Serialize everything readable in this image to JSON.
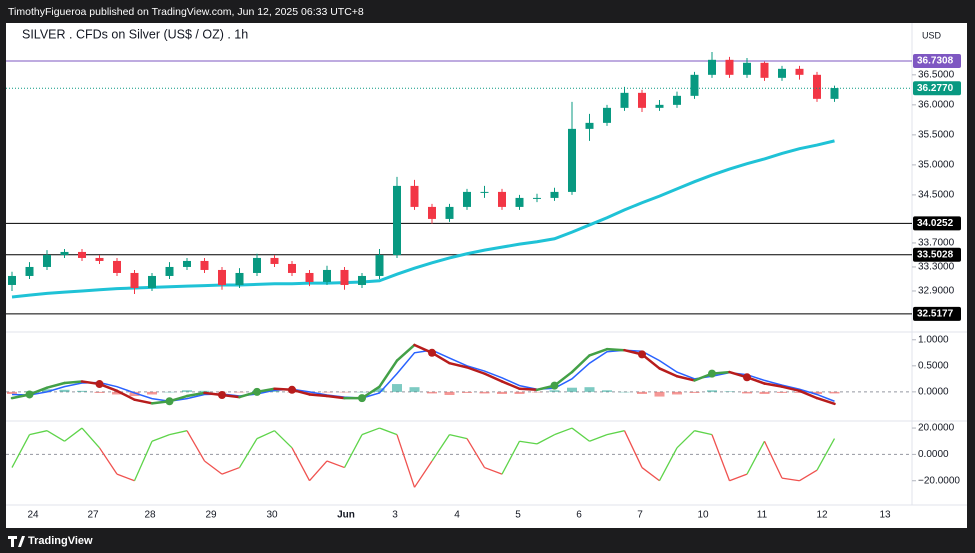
{
  "header": {
    "publisher": "TimothyFigueroa published on TradingView.com, Jun 12, 2025 06:33 UTC+8"
  },
  "footer": {
    "brand": "TradingView"
  },
  "chart_data": {
    "type": "candlestick",
    "title": "SILVER . CFDs on Silver (US$ / OZ) . 1h",
    "currency": "USD",
    "x_labels": [
      "24",
      "27",
      "28",
      "29",
      "30",
      "Jun",
      "3",
      "4",
      "5",
      "6",
      "7",
      "10",
      "11",
      "12",
      "13"
    ],
    "open": [
      33.0,
      33.15,
      33.3,
      33.5,
      33.55,
      33.45,
      33.4,
      33.2,
      32.95,
      33.15,
      33.3,
      33.4,
      33.25,
      33.0,
      33.2,
      33.45,
      33.35,
      33.2,
      33.05,
      33.25,
      33.0,
      33.15,
      33.5,
      34.65,
      34.3,
      34.1,
      34.3,
      34.55,
      34.55,
      34.3,
      34.45,
      34.45,
      34.55,
      35.6,
      35.7,
      35.95,
      36.2,
      35.95,
      36.0,
      36.15,
      36.5,
      36.75,
      36.5,
      36.7,
      36.45,
      36.6,
      36.5,
      36.1
    ],
    "high": [
      33.22,
      33.38,
      33.58,
      33.6,
      33.6,
      33.5,
      33.45,
      33.25,
      33.2,
      33.38,
      33.45,
      33.45,
      33.3,
      33.28,
      33.52,
      33.5,
      33.4,
      33.25,
      33.32,
      33.3,
      33.2,
      33.6,
      34.8,
      34.75,
      34.35,
      34.35,
      34.6,
      34.65,
      34.6,
      34.5,
      34.52,
      34.62,
      36.05,
      35.85,
      36.0,
      36.3,
      36.25,
      36.08,
      36.22,
      36.55,
      36.88,
      36.8,
      36.78,
      36.72,
      36.65,
      36.65,
      36.55,
      36.32
    ],
    "low": [
      32.9,
      33.1,
      33.25,
      33.45,
      33.4,
      33.35,
      33.15,
      32.85,
      32.9,
      33.1,
      33.25,
      33.2,
      32.92,
      32.95,
      33.15,
      33.3,
      33.15,
      32.98,
      33.0,
      32.92,
      32.95,
      33.1,
      33.45,
      34.25,
      34.02,
      34.05,
      34.25,
      34.45,
      34.25,
      34.25,
      34.38,
      34.4,
      34.5,
      35.4,
      35.65,
      35.9,
      35.88,
      35.9,
      35.95,
      36.1,
      36.45,
      36.45,
      36.45,
      36.4,
      36.4,
      36.42,
      36.05,
      36.05
    ],
    "close": [
      33.15,
      33.3,
      33.5,
      33.55,
      33.45,
      33.4,
      33.2,
      32.95,
      33.15,
      33.3,
      33.4,
      33.25,
      33.0,
      33.2,
      33.45,
      33.35,
      33.2,
      33.05,
      33.25,
      33.0,
      33.15,
      33.5,
      34.65,
      34.3,
      34.1,
      34.3,
      34.55,
      34.55,
      34.3,
      34.45,
      34.45,
      34.55,
      35.6,
      35.7,
      35.95,
      36.2,
      35.95,
      36.0,
      36.15,
      36.5,
      36.75,
      36.5,
      36.7,
      36.45,
      36.6,
      36.5,
      36.1,
      36.28
    ],
    "up_color": "#089981",
    "down_color": "#f23645",
    "moving_average": {
      "color": "#1fc2d6",
      "values": [
        32.8,
        32.83,
        32.86,
        32.88,
        32.9,
        32.92,
        32.94,
        32.95,
        32.96,
        32.97,
        32.98,
        32.99,
        33.0,
        33.0,
        33.01,
        33.02,
        33.02,
        33.03,
        33.03,
        33.04,
        33.05,
        33.07,
        33.18,
        33.28,
        33.37,
        33.45,
        33.52,
        33.58,
        33.63,
        33.68,
        33.72,
        33.77,
        33.88,
        34.0,
        34.12,
        34.25,
        34.37,
        34.48,
        34.6,
        34.72,
        34.83,
        34.93,
        35.02,
        35.1,
        35.19,
        35.27,
        35.33,
        35.4
      ]
    },
    "ylim": [
      32.25,
      37.28
    ],
    "yticks": [
      {
        "value": 36.5,
        "label": "36.5000"
      },
      {
        "value": 36.0,
        "label": "36.0000"
      },
      {
        "value": 35.5,
        "label": "35.5000"
      },
      {
        "value": 35.0,
        "label": "35.0000"
      },
      {
        "value": 34.5,
        "label": "34.5000"
      },
      {
        "value": 33.7,
        "label": "33.7000"
      },
      {
        "value": 33.3,
        "label": "33.3000"
      },
      {
        "value": 32.9,
        "label": "32.9000"
      }
    ],
    "levels": [
      {
        "value": 36.7308,
        "color": "#7e57c2"
      },
      {
        "value": 34.0252,
        "color": "#000000"
      },
      {
        "value": 33.5028,
        "color": "#000000"
      },
      {
        "value": 32.5177,
        "color": "#000000"
      }
    ],
    "last_price": {
      "value": 36.277,
      "label": "36.2770",
      "color": "#089981"
    },
    "panes": [
      {
        "type": "macd",
        "ylim": [
          -0.54,
          1.13
        ],
        "yticks": [
          {
            "value": 1.0,
            "label": "1.0000"
          },
          {
            "value": 0.5,
            "label": "0.5000"
          },
          {
            "value": 0.0,
            "label": "0.0000"
          }
        ],
        "zero_line": true,
        "fast": {
          "rising_color": "#43a047",
          "falling_color": "#b71c1c",
          "values": [
            -0.12,
            -0.05,
            0.08,
            0.17,
            0.2,
            0.15,
            0.02,
            -0.15,
            -0.22,
            -0.18,
            -0.08,
            -0.02,
            -0.06,
            -0.1,
            0.0,
            0.06,
            0.04,
            -0.05,
            -0.08,
            -0.12,
            -0.12,
            0.1,
            0.6,
            0.9,
            0.75,
            0.55,
            0.47,
            0.35,
            0.2,
            0.06,
            0.04,
            0.12,
            0.38,
            0.7,
            0.82,
            0.8,
            0.72,
            0.45,
            0.3,
            0.22,
            0.35,
            0.38,
            0.28,
            0.16,
            0.1,
            0.02,
            -0.12,
            -0.23
          ]
        },
        "signal": {
          "color": "#2962ff",
          "values": [
            -0.05,
            -0.06,
            0.0,
            0.1,
            0.17,
            0.18,
            0.1,
            -0.02,
            -0.13,
            -0.18,
            -0.13,
            -0.05,
            -0.04,
            -0.08,
            -0.04,
            0.03,
            0.05,
            0.0,
            -0.06,
            -0.1,
            -0.12,
            -0.02,
            0.35,
            0.75,
            0.8,
            0.65,
            0.5,
            0.4,
            0.27,
            0.12,
            0.05,
            0.07,
            0.25,
            0.55,
            0.77,
            0.8,
            0.78,
            0.6,
            0.38,
            0.25,
            0.3,
            0.37,
            0.33,
            0.22,
            0.13,
            0.05,
            -0.05,
            -0.18
          ]
        },
        "histogram": {
          "positive_color": "#26a69a",
          "negative_color": "#ef5350",
          "values": [
            -0.04,
            0.01,
            0.05,
            0.04,
            0.02,
            -0.02,
            -0.05,
            -0.08,
            -0.05,
            0.0,
            0.03,
            0.02,
            -0.01,
            -0.01,
            0.02,
            0.02,
            -0.01,
            -0.03,
            -0.01,
            -0.01,
            0.0,
            0.07,
            0.15,
            0.09,
            -0.03,
            -0.06,
            -0.02,
            -0.03,
            -0.04,
            -0.04,
            -0.01,
            0.03,
            0.08,
            0.09,
            0.03,
            0.0,
            -0.04,
            -0.09,
            -0.05,
            -0.02,
            0.03,
            0.01,
            -0.03,
            -0.04,
            -0.02,
            -0.02,
            -0.04,
            -0.03
          ]
        }
      },
      {
        "type": "oscillator",
        "ylim": [
          -36.9,
          24.6
        ],
        "yticks": [
          {
            "value": 20,
            "label": "20.0000"
          },
          {
            "value": 0,
            "label": "0.0000"
          },
          {
            "value": -20,
            "label": "−20.0000"
          }
        ],
        "zero_line": true,
        "line": {
          "positive_color": "#5ed44a",
          "negative_color": "#f0524f",
          "values": [
            -10,
            15,
            18,
            10,
            20,
            5,
            -15,
            -20,
            10,
            15,
            18,
            -5,
            -15,
            -10,
            12,
            18,
            5,
            -20,
            -5,
            -10,
            15,
            20,
            15,
            -25,
            -5,
            15,
            12,
            -10,
            -15,
            10,
            8,
            15,
            20,
            10,
            15,
            18,
            -10,
            -20,
            5,
            18,
            15,
            -20,
            -15,
            10,
            -18,
            -20,
            -12,
            12
          ]
        }
      }
    ]
  }
}
